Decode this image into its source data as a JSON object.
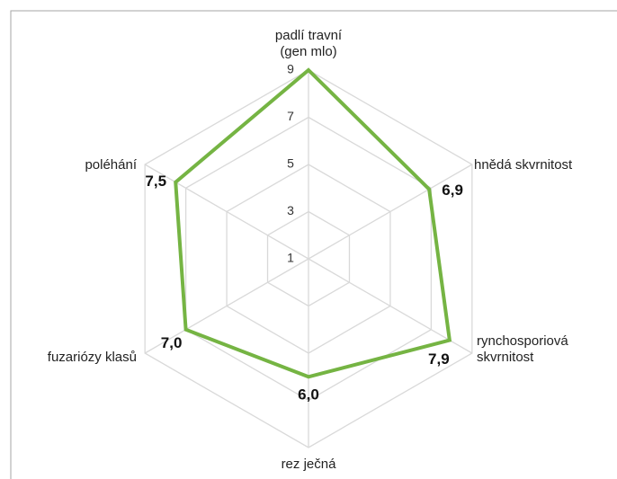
{
  "chart_data": {
    "type": "radar",
    "categories": [
      [
        "padlí travní",
        "(gen mlo)"
      ],
      "hnědá skvrnitost",
      [
        "rynchosporiová",
        "skvrnitost"
      ],
      "rez ječná",
      "fuzariózy klasů",
      "poléhání"
    ],
    "values": [
      9,
      6.9,
      7.9,
      6.0,
      7.0,
      7.5
    ],
    "value_labels": [
      null,
      "6,9",
      "7,9",
      "6,0",
      "7,0",
      "7,5"
    ],
    "color": "#75b443",
    "ylim": [
      1,
      9
    ],
    "yticks": [
      1,
      3,
      5,
      7,
      9
    ],
    "grid": true
  }
}
